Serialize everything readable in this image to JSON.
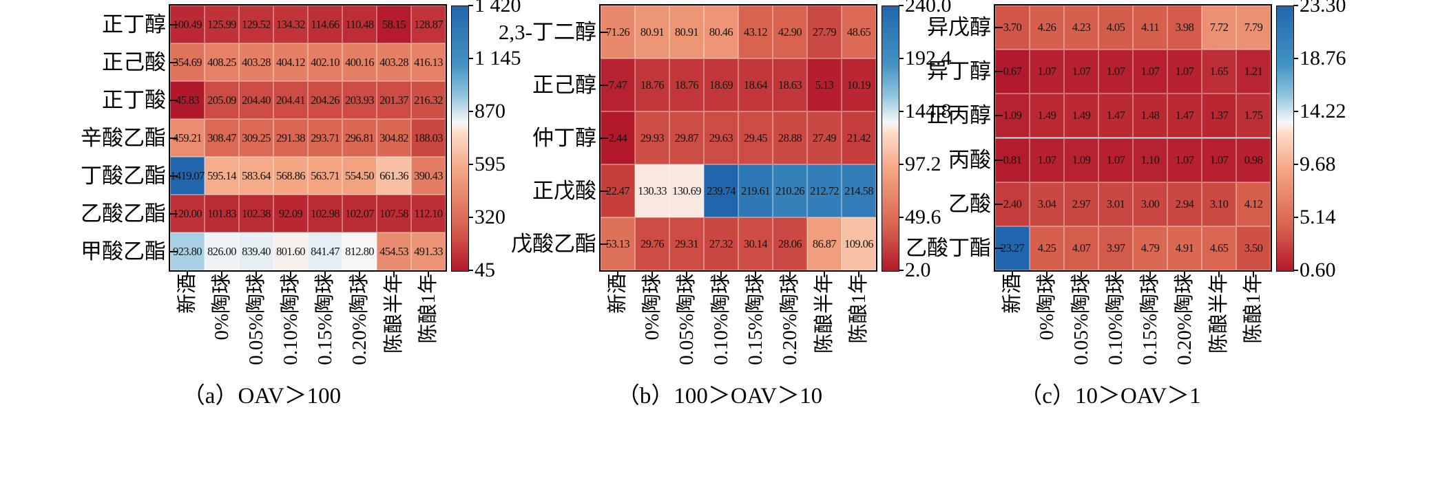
{
  "figure": {
    "description": "Three OAV heatmaps of aroma compounds under different aging treatments"
  },
  "colormap": {
    "name": "RdBu red-low blue-high",
    "low": "#b2182b",
    "mid": "#f7f7f7",
    "high": "#2166ac",
    "stops": [
      [
        0,
        "#b2182b"
      ],
      [
        0.16,
        "#d6604d"
      ],
      [
        0.38,
        "#f4a582"
      ],
      [
        0.52,
        "#fddbc7"
      ],
      [
        0.56,
        "#f7f7f7"
      ],
      [
        0.6,
        "#d1e5f0"
      ],
      [
        0.66,
        "#92c5de"
      ],
      [
        0.78,
        "#4393c3"
      ],
      [
        1,
        "#2166ac"
      ]
    ]
  },
  "chart_data": [
    {
      "type": "heatmap",
      "panel": "a",
      "caption": "（a）OAV＞100",
      "x_categories": [
        "新酒",
        "0%陶球",
        "0.05%陶球",
        "0.10%陶球",
        "0.15%陶球",
        "0.20%陶球",
        "陈酿半年",
        "陈酿1年"
      ],
      "rows": [
        {
          "name": "正丁醇",
          "values": [
            "100.49",
            "125.99",
            "129.52",
            "134.32",
            "114.66",
            "110.48",
            "58.15",
            "128.87"
          ]
        },
        {
          "name": "正己酸",
          "values": [
            "354.69",
            "408.25",
            "403.28",
            "404.12",
            "402.10",
            "400.16",
            "403.28",
            "416.13"
          ]
        },
        {
          "name": "正丁酸",
          "values": [
            "45.83",
            "205.09",
            "204.40",
            "204.41",
            "204.26",
            "203.93",
            "201.37",
            "216.32"
          ]
        },
        {
          "name": "辛酸乙酯",
          "values": [
            "459.21",
            "308.47",
            "309.25",
            "291.38",
            "293.71",
            "296.81",
            "304.82",
            "188.03"
          ]
        },
        {
          "name": "丁酸乙酯",
          "values": [
            "1419.07",
            "595.14",
            "583.64",
            "568.86",
            "563.71",
            "554.50",
            "661.36",
            "390.43"
          ]
        },
        {
          "name": "乙酸乙酯",
          "values": [
            "120.00",
            "101.83",
            "102.38",
            "92.09",
            "102.98",
            "102.07",
            "107.58",
            "112.10"
          ]
        },
        {
          "name": "甲酸乙酯",
          "values": [
            "923.80",
            "826.00",
            "839.40",
            "801.60",
            "841.47",
            "812.80",
            "454.53",
            "491.33"
          ]
        }
      ],
      "vmin": 45,
      "vmax": 1420,
      "colorbar_ticks": [
        "1 420",
        "1 145",
        "870",
        "595",
        "320",
        "45"
      ]
    },
    {
      "type": "heatmap",
      "panel": "b",
      "caption": "（b）100＞OAV＞10",
      "x_categories": [
        "新酒",
        "0%陶球",
        "0.05%陶球",
        "0.10%陶球",
        "0.15%陶球",
        "0.20%陶球",
        "陈酿半年",
        "陈酿1年"
      ],
      "rows": [
        {
          "name": "2,3-丁二醇",
          "values": [
            "71.26",
            "80.91",
            "80.91",
            "80.46",
            "43.12",
            "42.90",
            "27.79",
            "48.65"
          ]
        },
        {
          "name": "正己醇",
          "values": [
            "7.47",
            "18.76",
            "18.76",
            "18.69",
            "18.64",
            "18.63",
            "5.13",
            "10.19"
          ]
        },
        {
          "name": "仲丁醇",
          "values": [
            "2.44",
            "29.93",
            "29.87",
            "29.63",
            "29.45",
            "28.88",
            "27.49",
            "21.42"
          ]
        },
        {
          "name": "正戊酸",
          "values": [
            "22.47",
            "130.33",
            "130.69",
            "239.74",
            "219.61",
            "210.26",
            "212.72",
            "214.58"
          ]
        },
        {
          "name": "戊酸乙酯",
          "values": [
            "53.13",
            "29.76",
            "29.31",
            "27.32",
            "30.14",
            "28.06",
            "86.87",
            "109.06"
          ]
        }
      ],
      "vmin": 2.0,
      "vmax": 240.0,
      "colorbar_ticks": [
        "240.0",
        "192.4",
        "144.8",
        "97.2",
        "49.6",
        "2.0"
      ]
    },
    {
      "type": "heatmap",
      "panel": "c",
      "caption": "（c）10＞OAV＞1",
      "x_categories": [
        "新酒",
        "0%陶球",
        "0.05%陶球",
        "0.10%陶球",
        "0.15%陶球",
        "0.20%陶球",
        "陈酿半年",
        "陈酿1年"
      ],
      "rows": [
        {
          "name": "异戊醇",
          "values": [
            "3.70",
            "4.26",
            "4.23",
            "4.05",
            "4.11",
            "3.98",
            "7.72",
            "7.79"
          ]
        },
        {
          "name": "异丁醇",
          "values": [
            "0.67",
            "1.07",
            "1.07",
            "1.07",
            "1.07",
            "1.07",
            "1.65",
            "1.21"
          ]
        },
        {
          "name": "正丙醇",
          "values": [
            "1.09",
            "1.49",
            "1.49",
            "1.47",
            "1.48",
            "1.47",
            "1.37",
            "1.75"
          ]
        },
        {
          "name": "丙酸",
          "values": [
            "0.81",
            "1.07",
            "1.09",
            "1.07",
            "1.10",
            "1.07",
            "1.07",
            "0.98"
          ]
        },
        {
          "name": "乙酸",
          "values": [
            "2.40",
            "3.04",
            "2.97",
            "3.01",
            "3.00",
            "2.94",
            "3.10",
            "4.12"
          ]
        },
        {
          "name": "乙酸丁酯",
          "values": [
            "23.27",
            "4.25",
            "4.07",
            "3.97",
            "4.79",
            "4.91",
            "4.65",
            "3.50"
          ]
        }
      ],
      "vmin": 0.6,
      "vmax": 23.3,
      "colorbar_ticks": [
        "23.30",
        "18.76",
        "14.22",
        "9.68",
        "5.14",
        "0.60"
      ]
    }
  ]
}
